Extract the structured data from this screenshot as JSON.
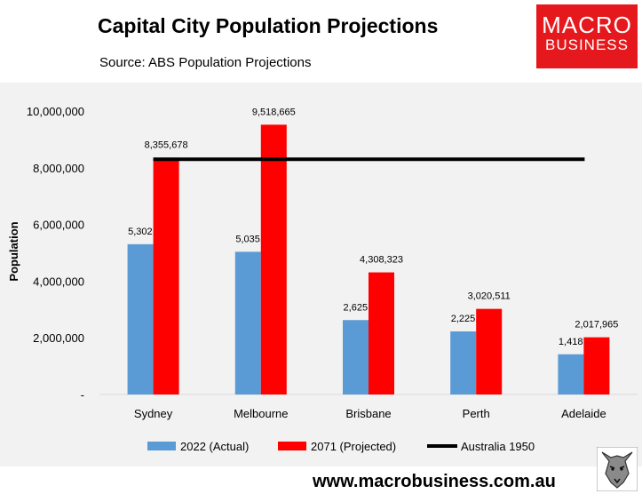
{
  "header": {
    "title": "Capital City Population Projections",
    "subtitle": "Source: ABS Population Projections"
  },
  "logo": {
    "line1": "MACRO",
    "line2": "BUSINESS"
  },
  "footer": {
    "url": "www.macrobusiness.com.au"
  },
  "colors": {
    "actual": "#5b9bd5",
    "projected": "#ff0000",
    "reference": "#000000",
    "logo": "#e5191d",
    "plot_bg": "#f2f2f2"
  },
  "chart_data": {
    "type": "bar",
    "title": "Capital City Population Projections",
    "subtitle": "Source: ABS Population Projections",
    "xlabel": "",
    "ylabel": "Population",
    "ylim": [
      0,
      10000000
    ],
    "yticks": [
      0,
      2000000,
      4000000,
      6000000,
      8000000,
      10000000
    ],
    "ytick_labels": [
      "-",
      "2,000,000",
      "4,000,000",
      "6,000,000",
      "8,000,000",
      "10,000,000"
    ],
    "categories": [
      "Sydney",
      "Melbourne",
      "Brisbane",
      "Perth",
      "Adelaide"
    ],
    "series": [
      {
        "name": "2022 (Actual)",
        "values": [
          5302736,
          5035738,
          2625341,
          2225710,
          1418230
        ],
        "labels": [
          "5,302,736",
          "5,035,738",
          "2,625,341",
          "2,225,710",
          "1,418,230"
        ]
      },
      {
        "name": "2071 (Projected)",
        "values": [
          8355678,
          9518665,
          4308323,
          3020511,
          2017965
        ],
        "labels": [
          "8,355,678",
          "9,518,665",
          "4,308,323",
          "3,020,511",
          "2,017,965"
        ]
      }
    ],
    "reference_line": {
      "name": "Australia 1950",
      "value": 8300000
    },
    "grid": false,
    "legend": "bottom"
  }
}
